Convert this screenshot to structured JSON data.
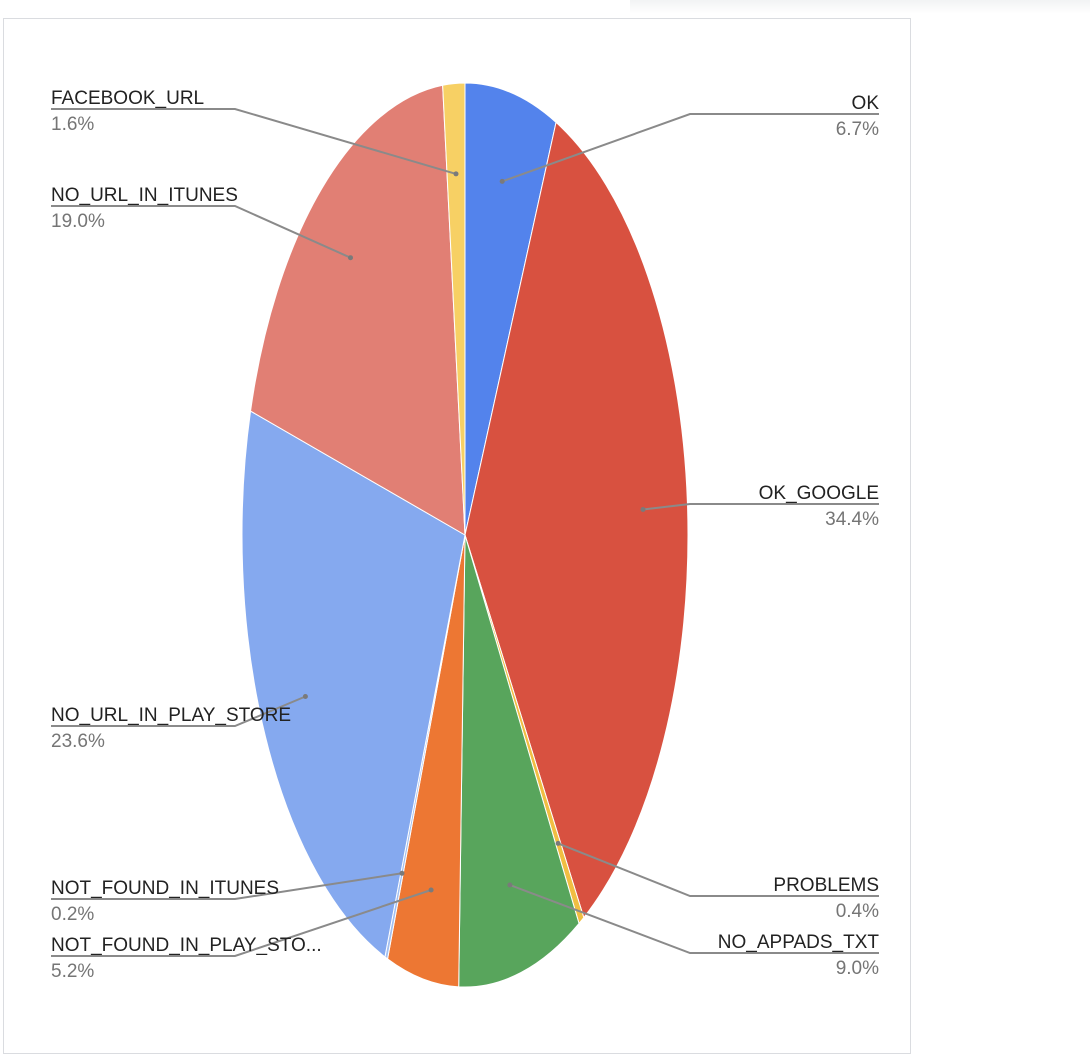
{
  "chart_data": {
    "type": "pie",
    "title": "",
    "start": "top",
    "direction": "clockwise",
    "legend": "labels-outside",
    "slices": [
      {
        "label": "OK",
        "value": 6.7,
        "display": "6.7%",
        "color": "#5383ec",
        "side": "right"
      },
      {
        "label": "OK_GOOGLE",
        "value": 34.4,
        "display": "34.4%",
        "color": "#d85140",
        "side": "right"
      },
      {
        "label": "PROBLEMS",
        "value": 0.4,
        "display": "0.4%",
        "color": "#f1be42",
        "side": "right"
      },
      {
        "label": "NO_APPADS_TXT",
        "value": 9.0,
        "display": "9.0%",
        "color": "#58a55c",
        "side": "right"
      },
      {
        "label": "NOT_FOUND_IN_PLAY_STO...",
        "value": 5.2,
        "display": "5.2%",
        "color": "#ed7733",
        "side": "left"
      },
      {
        "label": "NOT_FOUND_IN_ITUNES",
        "value": 0.2,
        "display": "0.2%",
        "color": "#a2bff0",
        "side": "left"
      },
      {
        "label": "NO_URL_IN_PLAY_STORE",
        "value": 23.6,
        "display": "23.6%",
        "color": "#85a9ef",
        "side": "left"
      },
      {
        "label": "NO_URL_IN_ITUNES",
        "value": 19.0,
        "display": "19.0%",
        "color": "#e17f74",
        "side": "left"
      },
      {
        "label": "FACEBOOK_URL",
        "value": 1.6,
        "display": "1.6%",
        "color": "#f7d064",
        "side": "left"
      }
    ]
  }
}
